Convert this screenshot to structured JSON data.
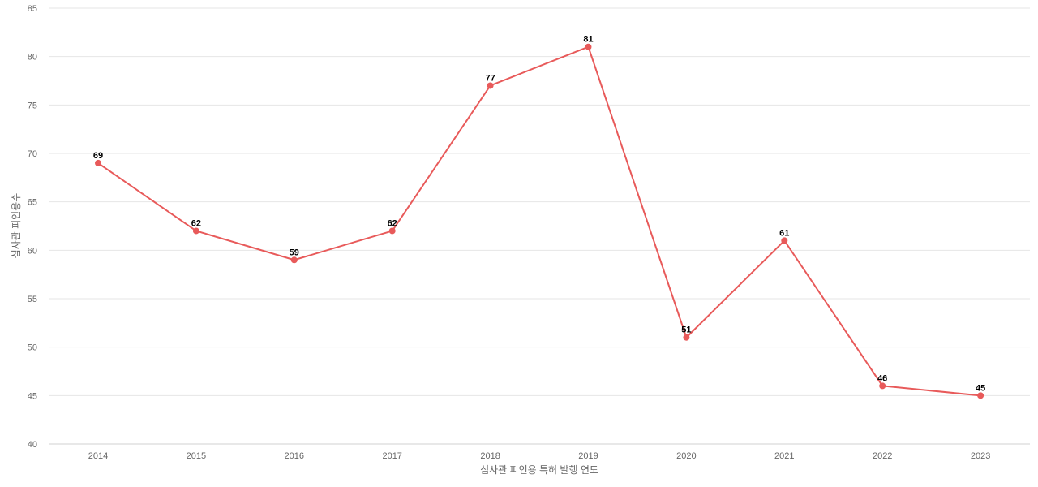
{
  "chart_data": {
    "type": "line",
    "title": "",
    "xlabel": "심사관 피인용 특허 발행 연도",
    "ylabel": "심사관 피인용수",
    "x": [
      "2014",
      "2015",
      "2016",
      "2017",
      "2018",
      "2019",
      "2020",
      "2021",
      "2022",
      "2023"
    ],
    "series": [
      {
        "values": [
          69,
          62,
          59,
          62,
          77,
          81,
          51,
          61,
          46,
          45
        ],
        "color": "#e85a5a"
      }
    ],
    "ylim": [
      40,
      85
    ],
    "yticks": [
      40,
      45,
      50,
      55,
      60,
      65,
      70,
      75,
      80,
      85
    ],
    "grid": true,
    "legend": "none",
    "data_labels": true
  }
}
